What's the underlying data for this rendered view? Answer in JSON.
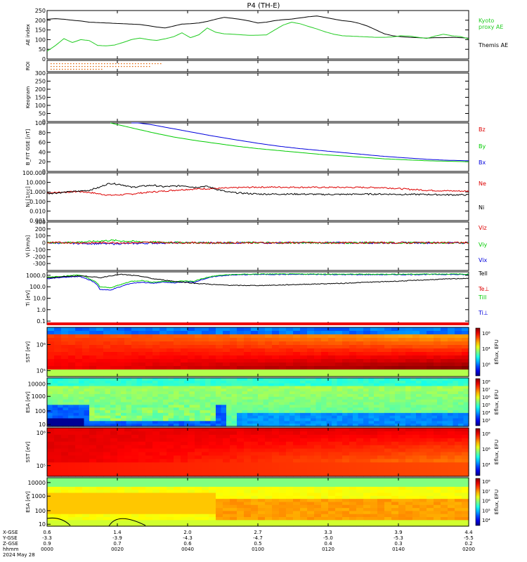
{
  "title": "P4 (TH-E)",
  "colors": {
    "black": "#000000",
    "red": "#dd0000",
    "green": "#00cc00",
    "blue": "#0000dd",
    "kyoto": "#22cc22",
    "orange_dots": "#e06000"
  },
  "chart_data": [
    {
      "id": "ae",
      "type": "line",
      "ylabel": "AE index",
      "ylim": [
        0,
        250
      ],
      "yticks": [
        "0",
        "50",
        "100",
        "150",
        "200",
        "250"
      ],
      "ytick_values": [
        0,
        50,
        100,
        150,
        200,
        250
      ],
      "x": [
        0,
        4,
        8,
        12,
        16,
        20,
        24,
        28,
        32,
        36,
        40,
        44,
        48,
        52,
        56,
        60,
        64,
        68,
        72,
        76,
        80,
        84,
        88,
        92,
        96,
        100,
        104,
        108,
        112,
        116,
        120,
        124,
        128,
        132,
        136,
        140,
        144,
        148,
        152,
        156,
        160,
        164,
        168,
        172,
        176,
        180,
        184,
        188,
        192,
        196,
        200
      ],
      "series": [
        {
          "name": "Themis AE",
          "color": "black",
          "values": [
            205,
            208,
            205,
            200,
            196,
            190,
            188,
            186,
            184,
            182,
            180,
            178,
            172,
            165,
            160,
            170,
            180,
            182,
            186,
            194,
            205,
            215,
            210,
            204,
            196,
            186,
            190,
            198,
            203,
            206,
            212,
            218,
            222,
            214,
            206,
            198,
            194,
            184,
            170,
            150,
            130,
            120,
            115,
            112,
            110,
            108,
            110,
            110,
            112,
            110,
            108
          ]
        },
        {
          "name": "Kyoto proxy AE",
          "color": "kyoto",
          "values": [
            40,
            70,
            105,
            85,
            100,
            95,
            70,
            68,
            72,
            85,
            100,
            108,
            100,
            96,
            104,
            115,
            135,
            110,
            125,
            160,
            138,
            130,
            128,
            125,
            122,
            123,
            124,
            150,
            175,
            190,
            182,
            168,
            155,
            140,
            128,
            120,
            118,
            116,
            114,
            112,
            112,
            114,
            120,
            118,
            112,
            106,
            118,
            128,
            120,
            116,
            104
          ]
        }
      ]
    },
    {
      "id": "roi",
      "type": "scatter",
      "ylabel": "ROI",
      "series": [
        {
          "name": "",
          "color": "orange_dots"
        }
      ]
    },
    {
      "id": "keogram",
      "type": "heatmap",
      "ylabel": "Keogram",
      "ylim": [
        0,
        300
      ],
      "yticks": [
        "0",
        "50",
        "100",
        "150",
        "200",
        "250",
        "300"
      ],
      "ytick_values": [
        0,
        50,
        100,
        150,
        200,
        250,
        300
      ]
    },
    {
      "id": "bfield",
      "type": "line",
      "ylabel": "B_FIT GSE [nT]",
      "ylim": [
        0,
        100
      ],
      "yticks": [
        "0",
        "20",
        "40",
        "60",
        "80",
        "100"
      ],
      "ytick_values": [
        0,
        20,
        40,
        60,
        80,
        100
      ],
      "x": [
        0,
        10,
        20,
        30,
        40,
        50,
        60,
        70,
        80,
        90,
        100,
        110,
        120,
        130,
        140,
        150,
        160,
        170,
        180,
        190,
        200
      ],
      "series": [
        {
          "name": "Bz",
          "color": "red",
          "values": [
            null,
            null,
            null,
            null,
            null,
            null,
            null,
            null,
            null,
            null,
            null,
            null,
            null,
            null,
            null,
            null,
            null,
            null,
            null,
            null,
            98
          ]
        },
        {
          "name": "By",
          "color": "green",
          "values": [
            null,
            null,
            null,
            100,
            90,
            80,
            71,
            64,
            58,
            52,
            47,
            43,
            39,
            35,
            32,
            29,
            26,
            24,
            22,
            21,
            20
          ]
        },
        {
          "name": "Bx",
          "color": "blue",
          "values": [
            null,
            null,
            null,
            null,
            102,
            96,
            88,
            80,
            72,
            65,
            58,
            52,
            47,
            43,
            39,
            35,
            31,
            28,
            25,
            23,
            22
          ]
        }
      ]
    },
    {
      "id": "density",
      "type": "line",
      "ylabel": "Ni [1/cc]",
      "scale": "log",
      "ylim": [
        0.001,
        100
      ],
      "yticks": [
        "100.000",
        "10.000",
        "1.000",
        "0.100",
        "0.010",
        "0.001"
      ],
      "ytick_values": [
        100,
        10,
        1,
        0.1,
        0.01,
        0.001
      ],
      "x": [
        0,
        5,
        10,
        15,
        20,
        25,
        30,
        35,
        40,
        45,
        50,
        55,
        60,
        65,
        70,
        75,
        80,
        85,
        90,
        95,
        100,
        110,
        120,
        130,
        140,
        150,
        160,
        170,
        180,
        190,
        200
      ],
      "series": [
        {
          "name": "Ne",
          "color": "red",
          "values": [
            0.8,
            0.9,
            1.0,
            1.1,
            0.9,
            0.6,
            0.45,
            0.5,
            0.6,
            0.8,
            1.0,
            1.2,
            1.5,
            1.8,
            2.0,
            2.2,
            2.3,
            2.5,
            2.8,
            3.0,
            3.2,
            3.2,
            3.1,
            3.0,
            3.0,
            3.0,
            2.8,
            2.0,
            1.5,
            1.3,
            1.2
          ]
        },
        {
          "name": "Ni",
          "color": "black",
          "values": [
            0.7,
            0.8,
            1.0,
            1.2,
            1.5,
            3.0,
            8.0,
            6.0,
            3.0,
            4.0,
            5.0,
            3.5,
            4.0,
            4.5,
            3.0,
            4.0,
            2.0,
            1.0,
            0.8,
            0.7,
            0.6,
            0.6,
            0.6,
            0.55,
            0.55,
            0.6,
            0.6,
            0.55,
            0.55,
            0.5,
            0.5
          ]
        }
      ]
    },
    {
      "id": "velocity",
      "type": "line",
      "ylabel": "Vi [km/s]",
      "ylim": [
        -400,
        300
      ],
      "yticks": [
        "300",
        "200",
        "100",
        "0",
        "-100",
        "-200",
        "-300"
      ],
      "ytick_values": [
        300,
        200,
        100,
        0,
        -100,
        -200,
        -300
      ],
      "x": [
        0,
        10,
        20,
        30,
        40,
        50,
        60,
        70,
        80,
        90,
        100,
        110,
        120,
        130,
        140,
        150,
        160,
        170,
        180,
        190,
        200
      ],
      "series": [
        {
          "name": "Viz",
          "color": "red",
          "values": [
            0,
            2,
            -2,
            3,
            -1,
            5,
            2,
            0,
            -2,
            1,
            0,
            -1,
            2,
            0,
            -2,
            1,
            0,
            -1,
            2,
            0,
            1
          ]
        },
        {
          "name": "Viy",
          "color": "green",
          "values": [
            0,
            5,
            15,
            35,
            20,
            10,
            5,
            0,
            -2,
            2,
            0,
            -1,
            1,
            0,
            -1,
            1,
            0,
            -1,
            1,
            0,
            0
          ]
        },
        {
          "name": "Vix",
          "color": "blue",
          "values": [
            0,
            -5,
            -10,
            -15,
            -10,
            -5,
            0,
            0,
            0,
            0,
            0,
            0,
            0,
            0,
            0,
            0,
            0,
            0,
            0,
            0,
            0
          ]
        }
      ]
    },
    {
      "id": "temperature",
      "type": "line",
      "ylabel": "Ti [eV]",
      "scale": "log",
      "ylim": [
        0.05,
        2000
      ],
      "yticks": [
        "1000.0",
        "100.0",
        "10.0",
        "1.0",
        "0.1"
      ],
      "ytick_values": [
        1000,
        100,
        10,
        1,
        0.1
      ],
      "x": [
        0,
        5,
        10,
        15,
        20,
        25,
        30,
        35,
        40,
        45,
        50,
        55,
        60,
        65,
        70,
        75,
        80,
        85,
        90,
        100,
        110,
        120,
        130,
        140,
        150,
        160,
        170,
        180,
        190,
        200
      ],
      "series": [
        {
          "name": "Tell",
          "color": "black",
          "values": [
            600,
            700,
            800,
            900,
            800,
            600,
            900,
            1200,
            1000,
            800,
            500,
            400,
            300,
            250,
            200,
            180,
            150,
            140,
            130,
            130,
            140,
            160,
            180,
            200,
            240,
            280,
            330,
            400,
            480,
            550
          ]
        },
        {
          "name": "Te⊥",
          "color": "red",
          "values": [
            null,
            null,
            null,
            null,
            null,
            null,
            null,
            null,
            null,
            null,
            null,
            null,
            null,
            null,
            null,
            null,
            null,
            null,
            null,
            null,
            null,
            null,
            null,
            null,
            null,
            null,
            null,
            null,
            null,
            null
          ]
        },
        {
          "name": "Till",
          "color": "green",
          "values": [
            700,
            800,
            900,
            1100,
            500,
            100,
            80,
            150,
            300,
            350,
            250,
            300,
            280,
            320,
            300,
            600,
            900,
            1100,
            1200,
            1300,
            1300,
            1300,
            1300,
            1250,
            1250,
            1250,
            1250,
            1300,
            1300,
            1250
          ]
        },
        {
          "name": "Ti⊥",
          "color": "blue",
          "values": [
            500,
            600,
            700,
            800,
            400,
            60,
            50,
            100,
            200,
            250,
            200,
            250,
            220,
            260,
            250,
            500,
            800,
            1000,
            1100,
            1200,
            1200,
            1200,
            1200,
            1150,
            1150,
            1150,
            1150,
            1200,
            1200,
            1150
          ]
        }
      ]
    },
    {
      "id": "sst_ion",
      "type": "heatmap",
      "ylabel": "SST [eV]",
      "yticks": [
        "10⁶",
        "10⁵"
      ],
      "cbar": {
        "label": "Eflux, EFU",
        "ticks": [
          "10⁸",
          "10⁴",
          "10⁶"
        ]
      }
    },
    {
      "id": "esa_ion",
      "type": "heatmap",
      "ylabel": "ESA [eV]",
      "yticks": [
        "10000",
        "1000",
        "100",
        "10"
      ],
      "cbar": {
        "label": "Eflux, EFU",
        "ticks": [
          "10⁸",
          "10⁷",
          "10⁶",
          "10⁵",
          "10⁴",
          "10³"
        ]
      }
    },
    {
      "id": "sst_elec",
      "type": "heatmap",
      "ylabel": "SST [eV]",
      "yticks": [
        "10⁶",
        "10⁵"
      ],
      "cbar": {
        "label": "Eflux, EFU",
        "ticks": [
          "10⁸",
          "10⁶",
          "10⁴"
        ]
      }
    },
    {
      "id": "esa_elec",
      "type": "heatmap",
      "ylabel": "ESA [eV]",
      "yticks": [
        "10000",
        "1000",
        "100",
        "10"
      ],
      "cbar": {
        "label": "Eflux, EFU",
        "ticks": [
          "10⁸",
          "10⁷",
          "10⁶",
          "10⁵",
          "10⁴"
        ]
      }
    }
  ],
  "xaxis": {
    "row_labels": [
      "X-GSE",
      "Y-GSE",
      "Z-GSE",
      "hhmm",
      "2024 May 28"
    ],
    "ticks": [
      {
        "x": [
          "0.6",
          "-3.3",
          "0.9"
        ],
        "time": "0000"
      },
      {
        "x": [
          "1.4",
          "-3.9",
          "0.7"
        ],
        "time": "0020"
      },
      {
        "x": [
          "2.0",
          "-4.3",
          "0.6"
        ],
        "time": "0040"
      },
      {
        "x": [
          "2.7",
          "-4.7",
          "0.5"
        ],
        "time": "0100"
      },
      {
        "x": [
          "3.3",
          "-5.0",
          "0.4"
        ],
        "time": "0120"
      },
      {
        "x": [
          "3.9",
          "-5.3",
          "0.3"
        ],
        "time": "0140"
      },
      {
        "x": [
          "4.4",
          "-5.5",
          "0.2"
        ],
        "time": "0200"
      }
    ]
  }
}
